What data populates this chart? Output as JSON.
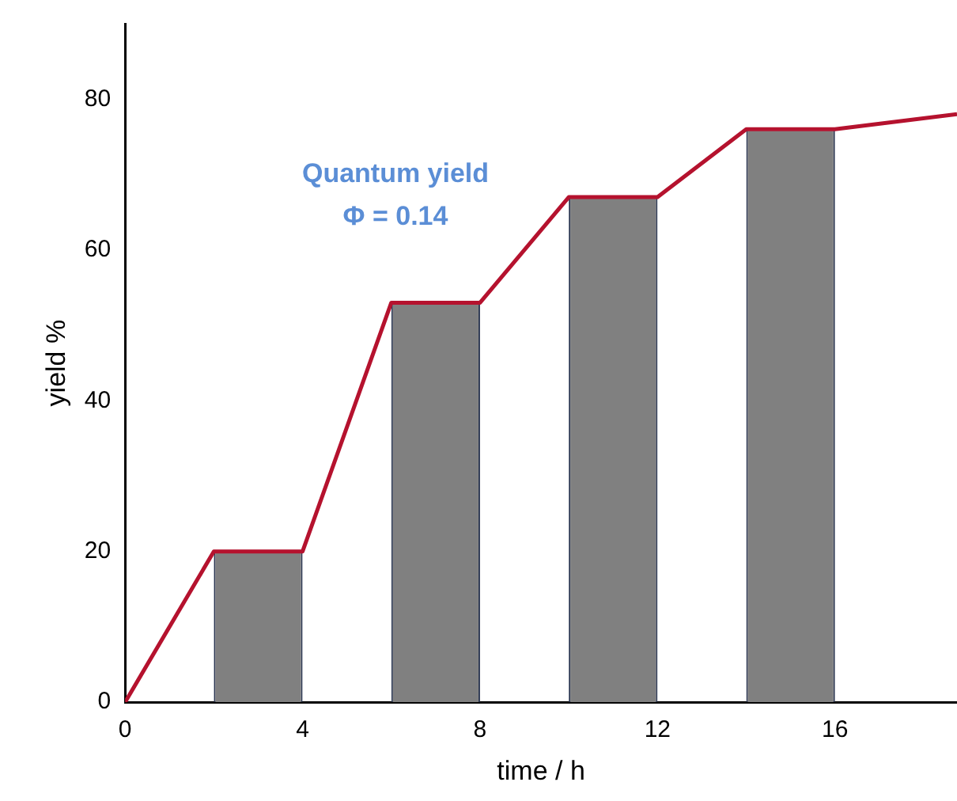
{
  "chart_data": {
    "type": "bar",
    "xlabel": "time / h",
    "ylabel": "yield %",
    "annotations": [
      "Quantum yield\nΦ = 0.14"
    ],
    "xlim": [
      0,
      18.75
    ],
    "xticks": [
      0,
      4,
      8,
      12,
      16
    ],
    "ylim": [
      0,
      90
    ],
    "yticks": [
      0,
      20,
      40,
      60,
      80
    ],
    "marker": "none",
    "series": [
      {
        "x": [
          3,
          7,
          11,
          15
        ],
        "values": [
          20,
          53,
          67,
          76
        ],
        "color": "#808080"
      },
      {
        "type": "line",
        "x": [
          0,
          2,
          4,
          6,
          8,
          10,
          12,
          14,
          16,
          18.75
        ],
        "values": [
          0,
          20,
          20,
          53,
          53,
          67,
          67,
          76,
          76,
          78
        ],
        "color": "#b5122e"
      }
    ]
  }
}
